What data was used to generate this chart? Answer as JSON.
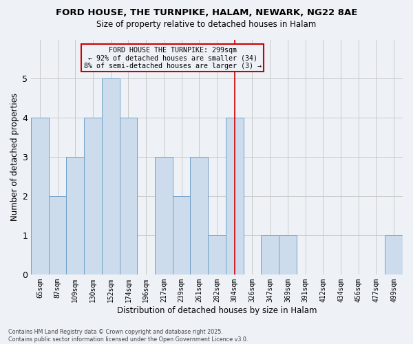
{
  "title": "FORD HOUSE, THE TURNPIKE, HALAM, NEWARK, NG22 8AE",
  "subtitle": "Size of property relative to detached houses in Halam",
  "xlabel": "Distribution of detached houses by size in Halam",
  "ylabel": "Number of detached properties",
  "bin_labels": [
    "65sqm",
    "87sqm",
    "109sqm",
    "130sqm",
    "152sqm",
    "174sqm",
    "196sqm",
    "217sqm",
    "239sqm",
    "261sqm",
    "282sqm",
    "304sqm",
    "326sqm",
    "347sqm",
    "369sqm",
    "391sqm",
    "412sqm",
    "434sqm",
    "456sqm",
    "477sqm",
    "499sqm"
  ],
  "bar_heights": [
    4,
    2,
    3,
    4,
    5,
    4,
    0,
    3,
    2,
    3,
    1,
    4,
    0,
    1,
    1,
    0,
    0,
    0,
    0,
    0,
    1
  ],
  "bar_color": "#cddcec",
  "bar_edge_color": "#6fa0c8",
  "grid_color": "#c8c8c8",
  "vline_index": 11,
  "vline_color": "#cc0000",
  "annotation_title": "FORD HOUSE THE TURNPIKE: 299sqm",
  "annotation_line2": "← 92% of detached houses are smaller (34)",
  "annotation_line3": "8% of semi-detached houses are larger (3) →",
  "annotation_box_color": "#cc0000",
  "footer_line1": "Contains HM Land Registry data © Crown copyright and database right 2025.",
  "footer_line2": "Contains public sector information licensed under the Open Government Licence v3.0.",
  "ylim": [
    0,
    6
  ],
  "yticks": [
    0,
    1,
    2,
    3,
    4,
    5
  ],
  "bg_color": "#eef2f7"
}
